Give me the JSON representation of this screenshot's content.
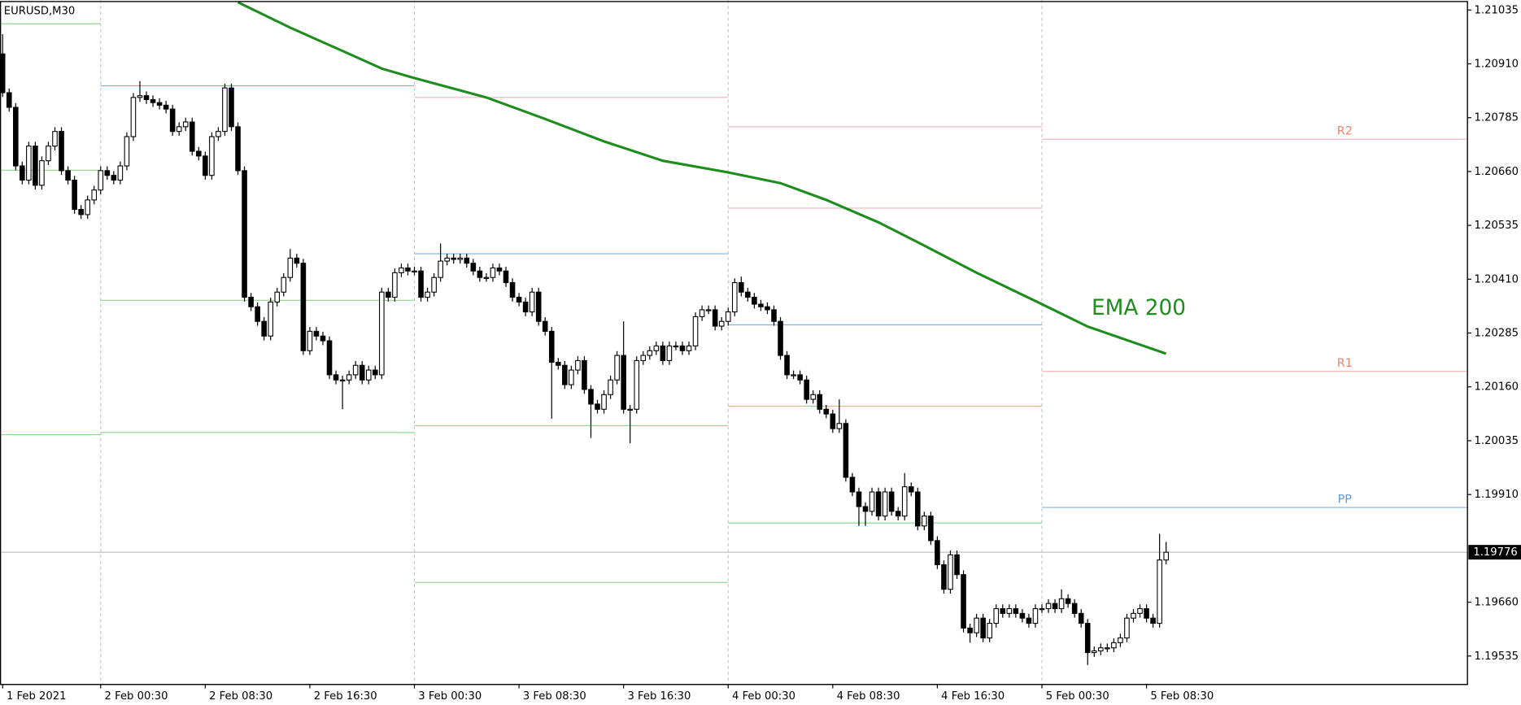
{
  "chart_data": {
    "type": "candlestick",
    "title": "EURUSD,M30",
    "up_color": "#ffffff",
    "down_color": "#000000",
    "ohlc": [
      [
        1.20933,
        1.20979,
        1.20833,
        1.20843
      ],
      [
        1.20843,
        1.20853,
        1.20799,
        1.20809
      ],
      [
        1.20809,
        1.20819,
        1.20663,
        1.20673
      ],
      [
        1.20673,
        1.20683,
        1.2063,
        1.2064
      ],
      [
        1.2064,
        1.20729,
        1.2063,
        1.20719
      ],
      [
        1.20719,
        1.20729,
        1.20618,
        1.20628
      ],
      [
        1.20628,
        1.20695,
        1.20618,
        1.20685
      ],
      [
        1.20685,
        1.20729,
        1.20675,
        1.20719
      ],
      [
        1.20719,
        1.20763,
        1.20709,
        1.20753
      ],
      [
        1.20753,
        1.20763,
        1.20652,
        1.20662
      ],
      [
        1.20662,
        1.20672,
        1.2063,
        1.2064
      ],
      [
        1.2064,
        1.2065,
        1.20562,
        1.20572
      ],
      [
        1.20572,
        1.20582,
        1.2055,
        1.2056
      ],
      [
        1.2056,
        1.20604,
        1.2055,
        1.20594
      ],
      [
        1.20594,
        1.20627,
        1.20584,
        1.20617
      ],
      [
        1.20617,
        1.20672,
        1.20607,
        1.20662
      ],
      [
        1.20662,
        1.20672,
        1.20641,
        1.20651
      ],
      [
        1.20651,
        1.20661,
        1.2063,
        1.2064
      ],
      [
        1.2064,
        1.20683,
        1.2063,
        1.20673
      ],
      [
        1.20673,
        1.20751,
        1.20663,
        1.20741
      ],
      [
        1.20741,
        1.20842,
        1.20731,
        1.20832
      ],
      [
        1.20832,
        1.2087,
        1.20822,
        1.20836
      ],
      [
        1.20836,
        1.20846,
        1.20817,
        1.20827
      ],
      [
        1.20827,
        1.20837,
        1.2081,
        1.2082
      ],
      [
        1.2082,
        1.2083,
        1.20804,
        1.20814
      ],
      [
        1.20814,
        1.20824,
        1.20795,
        1.20805
      ],
      [
        1.20805,
        1.20815,
        1.20743,
        1.20753
      ],
      [
        1.20753,
        1.20774,
        1.20743,
        1.20764
      ],
      [
        1.20764,
        1.20785,
        1.20754,
        1.20775
      ],
      [
        1.20775,
        1.20785,
        1.20697,
        1.20707
      ],
      [
        1.20707,
        1.20717,
        1.20686,
        1.20696
      ],
      [
        1.20696,
        1.20706,
        1.20641,
        1.20651
      ],
      [
        1.20651,
        1.20751,
        1.20641,
        1.20741
      ],
      [
        1.20741,
        1.20763,
        1.20731,
        1.20753
      ],
      [
        1.20753,
        1.20864,
        1.20743,
        1.20854
      ],
      [
        1.20854,
        1.20864,
        1.20754,
        1.20764
      ],
      [
        1.20764,
        1.20774,
        1.20652,
        1.20662
      ],
      [
        1.20662,
        1.20672,
        1.20358,
        1.20368
      ],
      [
        1.20368,
        1.20378,
        1.20336,
        1.20346
      ],
      [
        1.20346,
        1.20356,
        1.20302,
        1.20312
      ],
      [
        1.20312,
        1.20322,
        1.20268,
        1.20278
      ],
      [
        1.20278,
        1.20367,
        1.20268,
        1.20357
      ],
      [
        1.20357,
        1.2039,
        1.20347,
        1.2038
      ],
      [
        1.2038,
        1.20424,
        1.2037,
        1.20414
      ],
      [
        1.20414,
        1.2048,
        1.20404,
        1.20459
      ],
      [
        1.20459,
        1.20469,
        1.20437,
        1.20447
      ],
      [
        1.20447,
        1.20457,
        1.20234,
        1.20244
      ],
      [
        1.20244,
        1.20299,
        1.20234,
        1.20289
      ],
      [
        1.20289,
        1.20299,
        1.20268,
        1.20278
      ],
      [
        1.20278,
        1.20288,
        1.20257,
        1.20267
      ],
      [
        1.20267,
        1.20277,
        1.20178,
        1.20188
      ],
      [
        1.20188,
        1.20198,
        1.20166,
        1.20176
      ],
      [
        1.20176,
        1.20186,
        1.20108,
        1.20176
      ],
      [
        1.20176,
        1.20198,
        1.20166,
        1.20188
      ],
      [
        1.20188,
        1.2022,
        1.20178,
        1.2021
      ],
      [
        1.2021,
        1.2022,
        1.20166,
        1.20176
      ],
      [
        1.20176,
        1.20209,
        1.20166,
        1.20199
      ],
      [
        1.20199,
        1.20209,
        1.20178,
        1.20188
      ],
      [
        1.20188,
        1.2039,
        1.20178,
        1.2038
      ],
      [
        1.2038,
        1.2039,
        1.20358,
        1.20368
      ],
      [
        1.20368,
        1.20435,
        1.20358,
        1.20425
      ],
      [
        1.20425,
        1.20446,
        1.20415,
        1.20436
      ],
      [
        1.20436,
        1.20446,
        1.20419,
        1.20429
      ],
      [
        1.20429,
        1.20439,
        1.20419,
        1.20429
      ],
      [
        1.20429,
        1.20439,
        1.20358,
        1.20368
      ],
      [
        1.20368,
        1.2039,
        1.20358,
        1.2038
      ],
      [
        1.2038,
        1.20424,
        1.2037,
        1.20414
      ],
      [
        1.20414,
        1.20493,
        1.20404,
        1.20452
      ],
      [
        1.20452,
        1.20469,
        1.20442,
        1.20459
      ],
      [
        1.20459,
        1.20469,
        1.20446,
        1.20456
      ],
      [
        1.20456,
        1.20469,
        1.20446,
        1.20459
      ],
      [
        1.20459,
        1.20469,
        1.20437,
        1.20447
      ],
      [
        1.20447,
        1.20457,
        1.20419,
        1.20429
      ],
      [
        1.20429,
        1.20439,
        1.20404,
        1.20414
      ],
      [
        1.20414,
        1.20424,
        1.20404,
        1.20414
      ],
      [
        1.20414,
        1.20446,
        1.20404,
        1.20436
      ],
      [
        1.20436,
        1.20446,
        1.20419,
        1.20429
      ],
      [
        1.20429,
        1.20439,
        1.20392,
        1.20402
      ],
      [
        1.20402,
        1.20412,
        1.20358,
        1.20368
      ],
      [
        1.20368,
        1.20378,
        1.20347,
        1.20357
      ],
      [
        1.20357,
        1.20367,
        1.20324,
        1.20334
      ],
      [
        1.20334,
        1.2039,
        1.20324,
        1.2038
      ],
      [
        1.2038,
        1.2039,
        1.20302,
        1.20312
      ],
      [
        1.20312,
        1.20322,
        1.20279,
        1.20289
      ],
      [
        1.20289,
        1.20299,
        1.20086,
        1.20217
      ],
      [
        1.20217,
        1.20227,
        1.202,
        1.2021
      ],
      [
        1.2021,
        1.2022,
        1.20155,
        1.20165
      ],
      [
        1.20165,
        1.20209,
        1.20155,
        1.20199
      ],
      [
        1.20199,
        1.20231,
        1.20189,
        1.20221
      ],
      [
        1.20221,
        1.20231,
        1.20144,
        1.20154
      ],
      [
        1.20154,
        1.20164,
        1.20041,
        1.2012
      ],
      [
        1.2012,
        1.2013,
        1.20098,
        1.20108
      ],
      [
        1.20108,
        1.20152,
        1.20098,
        1.20142
      ],
      [
        1.20142,
        1.20186,
        1.20132,
        1.20176
      ],
      [
        1.20176,
        1.20243,
        1.20166,
        1.20233
      ],
      [
        1.20233,
        1.20312,
        1.20098,
        1.20108
      ],
      [
        1.20108,
        1.20118,
        1.20029,
        1.20108
      ],
      [
        1.20108,
        1.20231,
        1.20098,
        1.20221
      ],
      [
        1.20221,
        1.20243,
        1.20211,
        1.20233
      ],
      [
        1.20233,
        1.20254,
        1.20223,
        1.20244
      ],
      [
        1.20244,
        1.20265,
        1.20234,
        1.20255
      ],
      [
        1.20255,
        1.20265,
        1.20211,
        1.20221
      ],
      [
        1.20221,
        1.20265,
        1.20211,
        1.20255
      ],
      [
        1.20255,
        1.20265,
        1.20245,
        1.20255
      ],
      [
        1.20255,
        1.20265,
        1.20234,
        1.20244
      ],
      [
        1.20244,
        1.20265,
        1.20234,
        1.20255
      ],
      [
        1.20255,
        1.20333,
        1.20245,
        1.20323
      ],
      [
        1.20323,
        1.20349,
        1.20313,
        1.20339
      ],
      [
        1.20339,
        1.20349,
        1.20329,
        1.20339
      ],
      [
        1.20339,
        1.20349,
        1.20291,
        1.20301
      ],
      [
        1.20301,
        1.20322,
        1.20291,
        1.20312
      ],
      [
        1.20312,
        1.20344,
        1.20302,
        1.20334
      ],
      [
        1.20334,
        1.20412,
        1.20324,
        1.20402
      ],
      [
        1.20402,
        1.20416,
        1.2037,
        1.2038
      ],
      [
        1.2038,
        1.2039,
        1.20358,
        1.20368
      ],
      [
        1.20368,
        1.20378,
        1.20342,
        1.20352
      ],
      [
        1.20352,
        1.20362,
        1.20336,
        1.20346
      ],
      [
        1.20346,
        1.20356,
        1.20329,
        1.20339
      ],
      [
        1.20339,
        1.20349,
        1.20302,
        1.20312
      ],
      [
        1.20312,
        1.20322,
        1.20223,
        1.20233
      ],
      [
        1.20233,
        1.20243,
        1.20178,
        1.20188
      ],
      [
        1.20188,
        1.20198,
        1.20178,
        1.20188
      ],
      [
        1.20188,
        1.20198,
        1.20166,
        1.20176
      ],
      [
        1.20176,
        1.20186,
        1.20121,
        1.20131
      ],
      [
        1.20131,
        1.20152,
        1.20121,
        1.20142
      ],
      [
        1.20142,
        1.20152,
        1.20098,
        1.20108
      ],
      [
        1.20108,
        1.20118,
        1.20087,
        1.20097
      ],
      [
        1.20097,
        1.20107,
        1.20053,
        1.20063
      ],
      [
        1.20063,
        1.20131,
        1.20053,
        1.20075
      ],
      [
        1.20075,
        1.20085,
        1.1994,
        1.1995
      ],
      [
        1.1995,
        1.1996,
        1.19906,
        1.19916
      ],
      [
        1.19916,
        1.19926,
        1.19837,
        1.19882
      ],
      [
        1.19882,
        1.19892,
        1.19837,
        1.19871
      ],
      [
        1.19871,
        1.19926,
        1.19861,
        1.19916
      ],
      [
        1.19916,
        1.19926,
        1.1985,
        1.1986
      ],
      [
        1.1986,
        1.19926,
        1.1985,
        1.19916
      ],
      [
        1.19916,
        1.19926,
        1.19861,
        1.19871
      ],
      [
        1.19871,
        1.19881,
        1.1985,
        1.1986
      ],
      [
        1.1986,
        1.1996,
        1.1985,
        1.19928
      ],
      [
        1.19928,
        1.19938,
        1.19906,
        1.19916
      ],
      [
        1.19916,
        1.19926,
        1.19827,
        1.19837
      ],
      [
        1.19837,
        1.1987,
        1.19827,
        1.1986
      ],
      [
        1.1986,
        1.1987,
        1.19793,
        1.19803
      ],
      [
        1.19803,
        1.19813,
        1.19737,
        1.19747
      ],
      [
        1.19747,
        1.19757,
        1.1968,
        1.1969
      ],
      [
        1.1969,
        1.1978,
        1.1968,
        1.1977
      ],
      [
        1.1977,
        1.1978,
        1.19714,
        1.19724
      ],
      [
        1.19724,
        1.19734,
        1.1959,
        1.196
      ],
      [
        1.196,
        1.1961,
        1.19566,
        1.19589
      ],
      [
        1.19589,
        1.19633,
        1.19579,
        1.19623
      ],
      [
        1.19623,
        1.19633,
        1.19567,
        1.19577
      ],
      [
        1.19577,
        1.19621,
        1.19567,
        1.19611
      ],
      [
        1.19611,
        1.19655,
        1.19601,
        1.19645
      ],
      [
        1.19645,
        1.19655,
        1.19624,
        1.19634
      ],
      [
        1.19634,
        1.19655,
        1.19624,
        1.19645
      ],
      [
        1.19645,
        1.19655,
        1.19624,
        1.19634
      ],
      [
        1.19634,
        1.19644,
        1.19613,
        1.19623
      ],
      [
        1.19623,
        1.19633,
        1.19601,
        1.19611
      ],
      [
        1.19611,
        1.19655,
        1.19601,
        1.19645
      ],
      [
        1.19645,
        1.19655,
        1.19635,
        1.19645
      ],
      [
        1.19645,
        1.19667,
        1.19635,
        1.19657
      ],
      [
        1.19657,
        1.19667,
        1.19635,
        1.19645
      ],
      [
        1.19645,
        1.1969,
        1.19635,
        1.19668
      ],
      [
        1.19668,
        1.19678,
        1.19647,
        1.19657
      ],
      [
        1.19657,
        1.19667,
        1.19624,
        1.19634
      ],
      [
        1.19634,
        1.19644,
        1.19601,
        1.19611
      ],
      [
        1.19611,
        1.19621,
        1.19514,
        1.19543
      ],
      [
        1.19543,
        1.19557,
        1.19533,
        1.19547
      ],
      [
        1.19547,
        1.19564,
        1.19537,
        1.19554
      ],
      [
        1.19554,
        1.19564,
        1.19544,
        1.19554
      ],
      [
        1.19554,
        1.19576,
        1.19544,
        1.19566
      ],
      [
        1.19566,
        1.19587,
        1.19556,
        1.19577
      ],
      [
        1.19577,
        1.19633,
        1.19567,
        1.19623
      ],
      [
        1.19623,
        1.19644,
        1.19613,
        1.19634
      ],
      [
        1.19634,
        1.19655,
        1.19624,
        1.19645
      ],
      [
        1.19645,
        1.19655,
        1.19613,
        1.19623
      ],
      [
        1.19623,
        1.19633,
        1.19601,
        1.19611
      ],
      [
        1.19611,
        1.19819,
        1.19601,
        1.19758
      ],
      [
        1.19758,
        1.198,
        1.19748,
        1.19776
      ]
    ],
    "xlim": [
      -0.4,
      224.1
    ],
    "xticks": [
      {
        "value": 0,
        "label": "1 Feb 2021"
      },
      {
        "value": 15,
        "label": "2 Feb 00:30"
      },
      {
        "value": 31,
        "label": "2 Feb 08:30"
      },
      {
        "value": 47,
        "label": "2 Feb 16:30"
      },
      {
        "value": 63,
        "label": "3 Feb 00:30"
      },
      {
        "value": 79,
        "label": "3 Feb 08:30"
      },
      {
        "value": 95,
        "label": "3 Feb 16:30"
      },
      {
        "value": 111,
        "label": "4 Feb 00:30"
      },
      {
        "value": 127,
        "label": "4 Feb 08:30"
      },
      {
        "value": 143,
        "label": "4 Feb 16:30"
      },
      {
        "value": 159,
        "label": "5 Feb 00:30"
      },
      {
        "value": 175,
        "label": "5 Feb 08:30"
      }
    ],
    "ylim": [
      1.19469,
      1.21058
    ],
    "yticks": [
      1.21035,
      {
        "value": 1.2091,
        "label": "1.20910"
      },
      1.20785,
      {
        "value": 1.2066,
        "label": "1.20660"
      },
      1.20535,
      {
        "value": 1.2041,
        "label": "1.20410"
      },
      1.20285,
      {
        "value": 1.2016,
        "label": "1.20160"
      },
      1.20035,
      {
        "value": 1.1991,
        "label": "1.19910"
      },
      {
        "value": 1.1966,
        "label": "1.19660"
      },
      1.19535
    ],
    "ema": {
      "name": "EMA 200",
      "color": "#1e8c1e",
      "x": [
        36,
        44,
        52,
        58,
        63,
        74,
        83,
        92,
        101,
        111,
        119,
        126,
        134,
        141,
        149,
        159,
        166,
        178
      ],
      "values": [
        1.21053,
        1.20994,
        1.2094,
        1.20899,
        1.20877,
        1.20832,
        1.20782,
        1.2073,
        1.20685,
        1.20658,
        1.20633,
        1.20594,
        1.20542,
        1.20488,
        1.20425,
        1.20352,
        1.203,
        1.20237
      ]
    },
    "current_price": 1.19776,
    "pivots": [
      [
        {
          "value": 1.21003,
          "color": "#8fd68f"
        },
        {
          "value": 1.20663,
          "color": "#8fd68f"
        },
        {
          "value": 1.20049,
          "color": "#8fd68f"
        }
      ],
      [
        {
          "value": 1.20859,
          "color": "#7fb0e8"
        },
        {
          "value": 1.20361,
          "color": "#8fd68f"
        },
        {
          "value": 1.20054,
          "color": "#8fd68f"
        }
      ],
      [
        {
          "value": 1.20832,
          "color": "#f4b0b0"
        },
        {
          "value": 1.20469,
          "color": "#7fb0e8"
        },
        {
          "value": 1.2007,
          "color": "#8fd68f"
        },
        {
          "value": 1.19706,
          "color": "#8fd68f"
        }
      ],
      [
        {
          "value": 1.20764,
          "color": "#f4b0b0"
        },
        {
          "value": 1.20575,
          "color": "#f4b0b0"
        },
        {
          "value": 1.20304,
          "color": "#7fb0e8"
        },
        {
          "value": 1.20115,
          "color": "#8fd68f"
        },
        {
          "value": 1.19844,
          "color": "#8fd68f"
        }
      ],
      [
        {
          "value": 1.20735,
          "color": "#f4b0b0",
          "label": "R2",
          "label_color": "#e9826f"
        },
        {
          "value": 1.20196,
          "color": "#f4b0b0",
          "label": "R1",
          "label_color": "#e9826f"
        },
        {
          "value": 1.1988,
          "color": "#7fb0e8",
          "label": "PP",
          "label_color": "#5b9bd5"
        }
      ]
    ]
  }
}
